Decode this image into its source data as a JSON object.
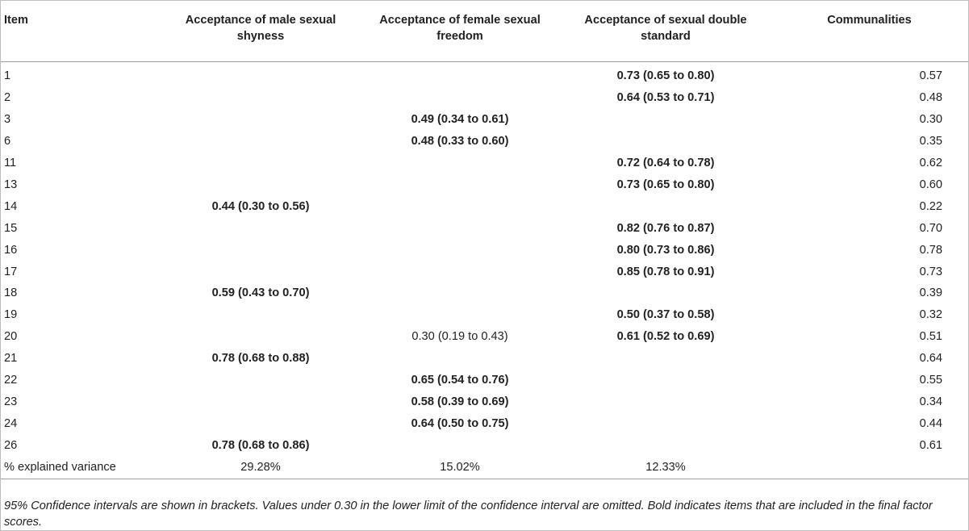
{
  "columns": [
    "Item",
    "Acceptance of male sexual shyness",
    "Acceptance of female sexual freedom",
    "Acceptance of sexual double standard",
    "Communalities"
  ],
  "rows": [
    {
      "item": "1",
      "male": "",
      "female": "",
      "double": "0.73 (0.65 to 0.80)",
      "comm": "0.57",
      "male_bold": false,
      "female_bold": false,
      "double_bold": true
    },
    {
      "item": "2",
      "male": "",
      "female": "",
      "double": "0.64 (0.53 to 0.71)",
      "comm": "0.48",
      "male_bold": false,
      "female_bold": false,
      "double_bold": true
    },
    {
      "item": "3",
      "male": "",
      "female": "0.49 (0.34 to 0.61)",
      "double": "",
      "comm": "0.30",
      "male_bold": false,
      "female_bold": true,
      "double_bold": false
    },
    {
      "item": "6",
      "male": "",
      "female": "0.48 (0.33 to 0.60)",
      "double": "",
      "comm": "0.35",
      "male_bold": false,
      "female_bold": true,
      "double_bold": false
    },
    {
      "item": "11",
      "male": "",
      "female": "",
      "double": "0.72 (0.64 to 0.78)",
      "comm": "0.62",
      "male_bold": false,
      "female_bold": false,
      "double_bold": true
    },
    {
      "item": "13",
      "male": "",
      "female": "",
      "double": "0.73 (0.65 to 0.80)",
      "comm": "0.60",
      "male_bold": false,
      "female_bold": false,
      "double_bold": true
    },
    {
      "item": "14",
      "male": "0.44 (0.30 to 0.56)",
      "female": "",
      "double": "",
      "comm": "0.22",
      "male_bold": true,
      "female_bold": false,
      "double_bold": false
    },
    {
      "item": "15",
      "male": "",
      "female": "",
      "double": "0.82 (0.76 to 0.87)",
      "comm": "0.70",
      "male_bold": false,
      "female_bold": false,
      "double_bold": true
    },
    {
      "item": "16",
      "male": "",
      "female": "",
      "double": "0.80 (0.73 to 0.86)",
      "comm": "0.78",
      "male_bold": false,
      "female_bold": false,
      "double_bold": true
    },
    {
      "item": "17",
      "male": "",
      "female": "",
      "double": "0.85 (0.78 to 0.91)",
      "comm": "0.73",
      "male_bold": false,
      "female_bold": false,
      "double_bold": true
    },
    {
      "item": "18",
      "male": "0.59 (0.43 to 0.70)",
      "female": "",
      "double": "",
      "comm": "0.39",
      "male_bold": true,
      "female_bold": false,
      "double_bold": false
    },
    {
      "item": "19",
      "male": "",
      "female": "",
      "double": "0.50 (0.37 to 0.58)",
      "comm": "0.32",
      "male_bold": false,
      "female_bold": false,
      "double_bold": true
    },
    {
      "item": "20",
      "male": "",
      "female": "0.30 (0.19 to 0.43)",
      "double": "0.61 (0.52 to 0.69)",
      "comm": "0.51",
      "male_bold": false,
      "female_bold": false,
      "double_bold": true
    },
    {
      "item": "21",
      "male": "0.78 (0.68 to 0.88)",
      "female": "",
      "double": "",
      "comm": "0.64",
      "male_bold": true,
      "female_bold": false,
      "double_bold": false
    },
    {
      "item": "22",
      "male": "",
      "female": "0.65 (0.54 to 0.76)",
      "double": "",
      "comm": "0.55",
      "male_bold": false,
      "female_bold": true,
      "double_bold": false
    },
    {
      "item": "23",
      "male": "",
      "female": "0.58 (0.39 to 0.69)",
      "double": "",
      "comm": "0.34",
      "male_bold": false,
      "female_bold": true,
      "double_bold": false
    },
    {
      "item": "24",
      "male": "",
      "female": "0.64 (0.50 to 0.75)",
      "double": "",
      "comm": "0.44",
      "male_bold": false,
      "female_bold": true,
      "double_bold": false
    },
    {
      "item": "26",
      "male": "0.78 (0.68 to 0.86)",
      "female": "",
      "double": "",
      "comm": "0.61",
      "male_bold": true,
      "female_bold": false,
      "double_bold": false
    }
  ],
  "variance": {
    "label": "% explained variance",
    "male": "29.28%",
    "female": "15.02%",
    "double": "12.33%",
    "comm": ""
  },
  "footnote": "95% Confidence intervals are shown in brackets. Values under 0.30 in the lower limit of the confidence interval are omitted. Bold indicates items that are included in the final factor scores."
}
